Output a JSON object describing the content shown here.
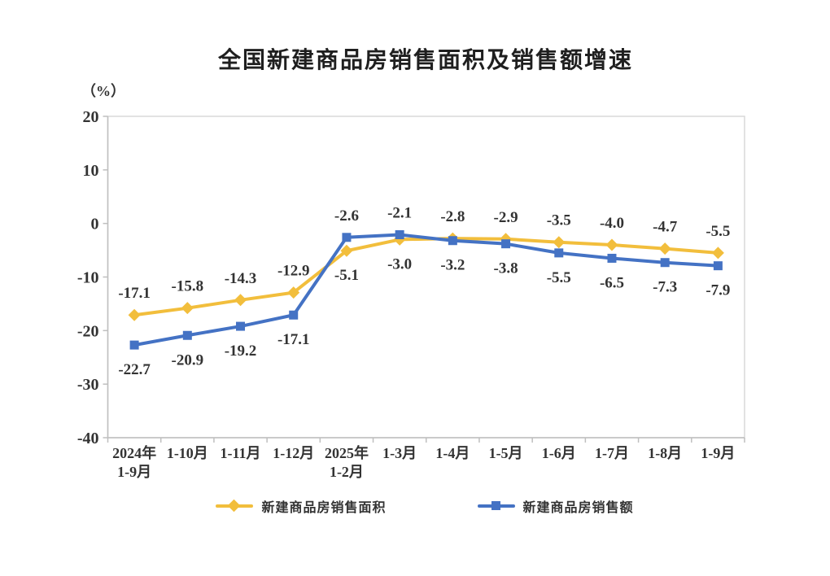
{
  "chart_data": {
    "type": "line",
    "title": "全国新建商品房销售面积及销售额增速",
    "ylabel": "（%）",
    "xlabel": "",
    "categories": [
      "2024年1-9月",
      "1-10月",
      "1-11月",
      "1-12月",
      "2025年1-2月",
      "1-3月",
      "1-4月",
      "1-5月",
      "1-6月",
      "1-7月",
      "1-8月",
      "1-9月"
    ],
    "series": [
      {
        "name": "新建商品房销售面积",
        "marker": "diamond",
        "color": "#F2BE3C",
        "values": [
          -17.1,
          -15.8,
          -14.3,
          -12.9,
          -5.1,
          -3.0,
          -2.8,
          -2.9,
          -3.5,
          -4.0,
          -4.7,
          -5.5
        ]
      },
      {
        "name": "新建商品房销售额",
        "marker": "square",
        "color": "#4472C4",
        "values": [
          -22.7,
          -20.9,
          -19.2,
          -17.1,
          -2.6,
          -2.1,
          -3.2,
          -3.8,
          -5.5,
          -6.5,
          -7.3,
          -7.9
        ]
      }
    ],
    "y_ticks": [
      20,
      10,
      0,
      -10,
      -20,
      -30,
      -40
    ],
    "ylim": [
      -40,
      20
    ],
    "grid": false,
    "data_labels": true,
    "legend_position": "bottom",
    "axis_color": "#BFBFBF",
    "border_color": "#D9D9D9",
    "label_color": "#333333"
  }
}
